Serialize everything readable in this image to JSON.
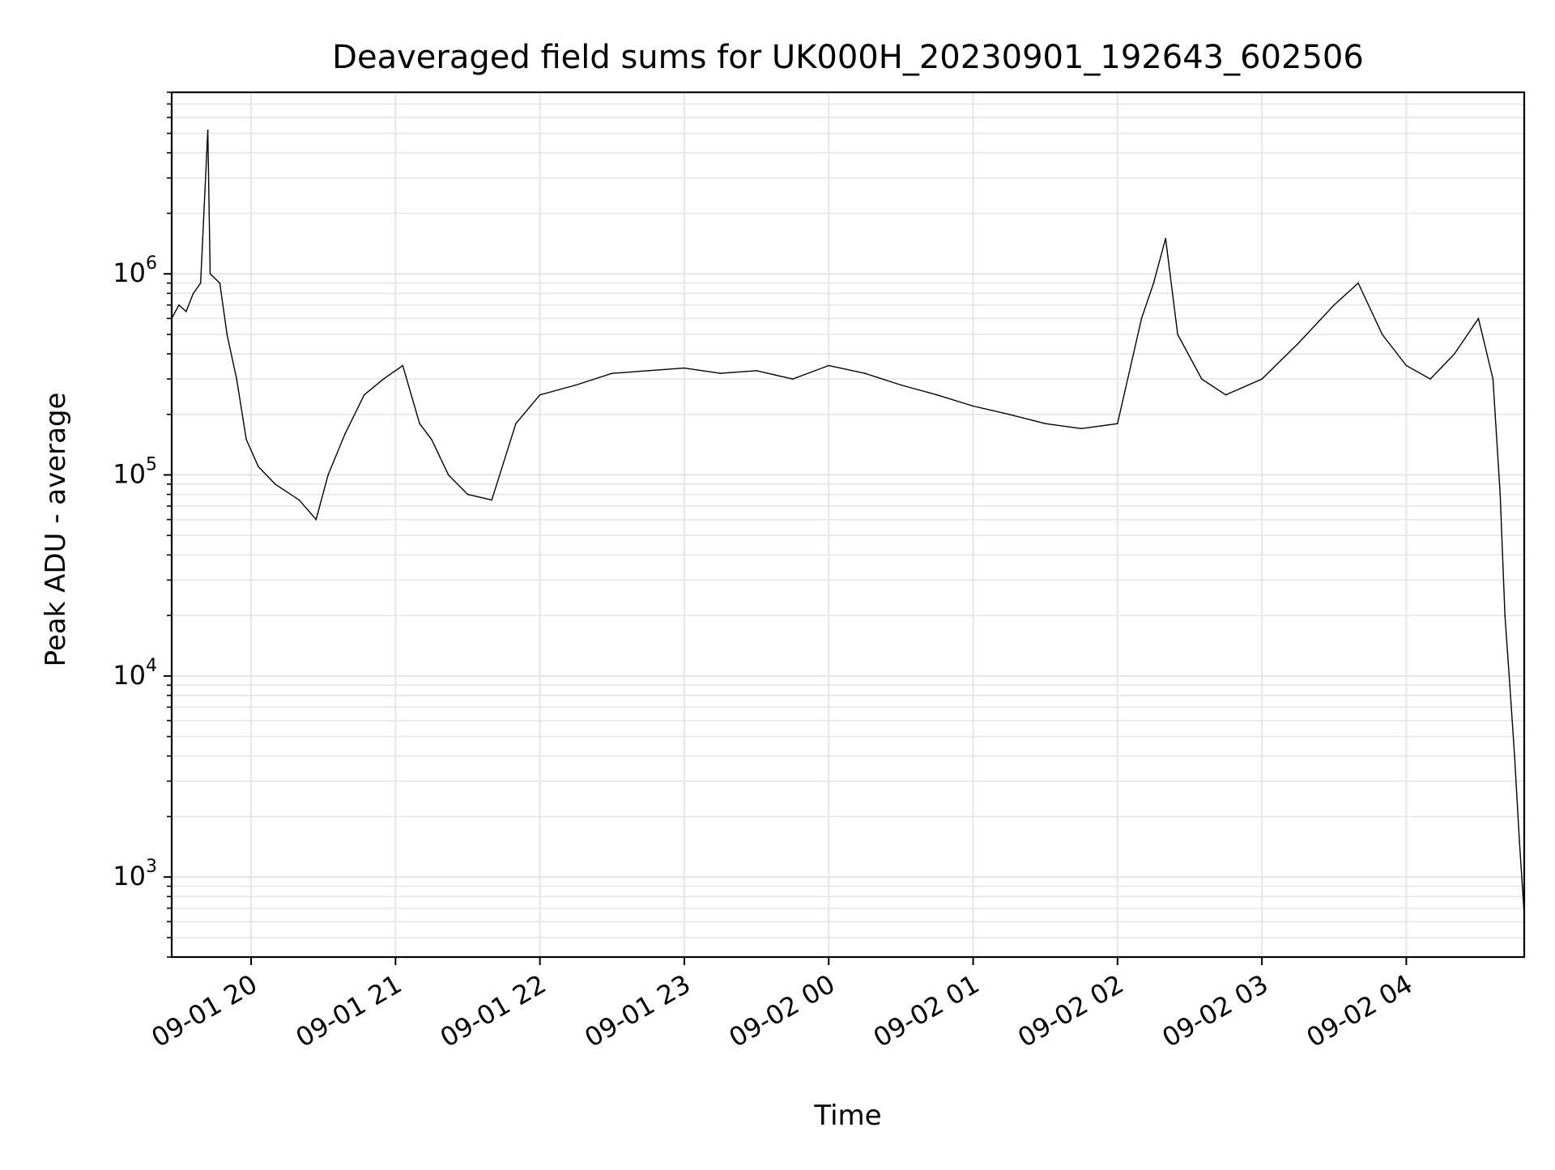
{
  "chart_data": {
    "type": "line",
    "title": "Deaveraged field sums for UK000H_20230901_192643_602506",
    "xlabel": "Time",
    "ylabel": "Peak ADU - average",
    "yscale": "log",
    "grid": true,
    "line_color": "#000000",
    "grid_color": "#e6e6e6",
    "xlim": [
      "2023-09-01 19:27",
      "2023-09-02 04:49"
    ],
    "ylim": [
      400,
      8000000
    ],
    "x_ticks": [
      {
        "label": "09-01 20",
        "time": "2023-09-01 20:00"
      },
      {
        "label": "09-01 21",
        "time": "2023-09-01 21:00"
      },
      {
        "label": "09-01 22",
        "time": "2023-09-01 22:00"
      },
      {
        "label": "09-01 23",
        "time": "2023-09-01 23:00"
      },
      {
        "label": "09-02 00",
        "time": "2023-09-02 00:00"
      },
      {
        "label": "09-02 01",
        "time": "2023-09-02 01:00"
      },
      {
        "label": "09-02 02",
        "time": "2023-09-02 02:00"
      },
      {
        "label": "09-02 03",
        "time": "2023-09-02 03:00"
      },
      {
        "label": "09-02 04",
        "time": "2023-09-02 04:00"
      }
    ],
    "y_ticks": [
      {
        "base": "10",
        "exp": "3",
        "value": 1000
      },
      {
        "base": "10",
        "exp": "4",
        "value": 10000
      },
      {
        "base": "10",
        "exp": "5",
        "value": 100000
      },
      {
        "base": "10",
        "exp": "6",
        "value": 1000000
      }
    ],
    "series": [
      {
        "points": [
          [
            "2023-09-01 19:27",
            600000
          ],
          [
            "2023-09-01 19:30",
            700000
          ],
          [
            "2023-09-01 19:33",
            650000
          ],
          [
            "2023-09-01 19:36",
            800000
          ],
          [
            "2023-09-01 19:39",
            900000
          ],
          [
            "2023-09-01 19:42",
            5200000
          ],
          [
            "2023-09-01 19:43",
            1000000
          ],
          [
            "2023-09-01 19:47",
            900000
          ],
          [
            "2023-09-01 19:50",
            500000
          ],
          [
            "2023-09-01 19:54",
            300000
          ],
          [
            "2023-09-01 19:58",
            150000
          ],
          [
            "2023-09-01 20:03",
            110000
          ],
          [
            "2023-09-01 20:10",
            90000
          ],
          [
            "2023-09-01 20:20",
            75000
          ],
          [
            "2023-09-01 20:27",
            60000
          ],
          [
            "2023-09-01 20:32",
            100000
          ],
          [
            "2023-09-01 20:39",
            160000
          ],
          [
            "2023-09-01 20:47",
            250000
          ],
          [
            "2023-09-01 20:55",
            300000
          ],
          [
            "2023-09-01 21:03",
            350000
          ],
          [
            "2023-09-01 21:10",
            180000
          ],
          [
            "2023-09-01 21:15",
            150000
          ],
          [
            "2023-09-01 21:22",
            100000
          ],
          [
            "2023-09-01 21:30",
            80000
          ],
          [
            "2023-09-01 21:40",
            75000
          ],
          [
            "2023-09-01 21:50",
            180000
          ],
          [
            "2023-09-01 22:00",
            250000
          ],
          [
            "2023-09-01 22:15",
            280000
          ],
          [
            "2023-09-01 22:30",
            320000
          ],
          [
            "2023-09-01 22:45",
            330000
          ],
          [
            "2023-09-01 23:00",
            340000
          ],
          [
            "2023-09-01 23:15",
            320000
          ],
          [
            "2023-09-01 23:30",
            330000
          ],
          [
            "2023-09-01 23:45",
            300000
          ],
          [
            "2023-09-02 00:00",
            350000
          ],
          [
            "2023-09-02 00:15",
            320000
          ],
          [
            "2023-09-02 00:30",
            280000
          ],
          [
            "2023-09-02 00:45",
            250000
          ],
          [
            "2023-09-02 01:00",
            220000
          ],
          [
            "2023-09-02 01:15",
            200000
          ],
          [
            "2023-09-02 01:30",
            180000
          ],
          [
            "2023-09-02 01:45",
            170000
          ],
          [
            "2023-09-02 02:00",
            180000
          ],
          [
            "2023-09-02 02:10",
            600000
          ],
          [
            "2023-09-02 02:15",
            900000
          ],
          [
            "2023-09-02 02:20",
            1500000
          ],
          [
            "2023-09-02 02:25",
            500000
          ],
          [
            "2023-09-02 02:35",
            300000
          ],
          [
            "2023-09-02 02:45",
            250000
          ],
          [
            "2023-09-02 03:00",
            300000
          ],
          [
            "2023-09-02 03:15",
            450000
          ],
          [
            "2023-09-02 03:30",
            700000
          ],
          [
            "2023-09-02 03:40",
            900000
          ],
          [
            "2023-09-02 03:50",
            500000
          ],
          [
            "2023-09-02 04:00",
            350000
          ],
          [
            "2023-09-02 04:10",
            300000
          ],
          [
            "2023-09-02 04:20",
            400000
          ],
          [
            "2023-09-02 04:30",
            600000
          ],
          [
            "2023-09-02 04:36",
            300000
          ],
          [
            "2023-09-02 04:39",
            80000
          ],
          [
            "2023-09-02 04:41",
            20000
          ],
          [
            "2023-09-02 04:43",
            9000
          ],
          [
            "2023-09-02 04:45",
            4000
          ],
          [
            "2023-09-02 04:47",
            1500
          ],
          [
            "2023-09-02 04:49",
            650
          ]
        ]
      }
    ]
  }
}
